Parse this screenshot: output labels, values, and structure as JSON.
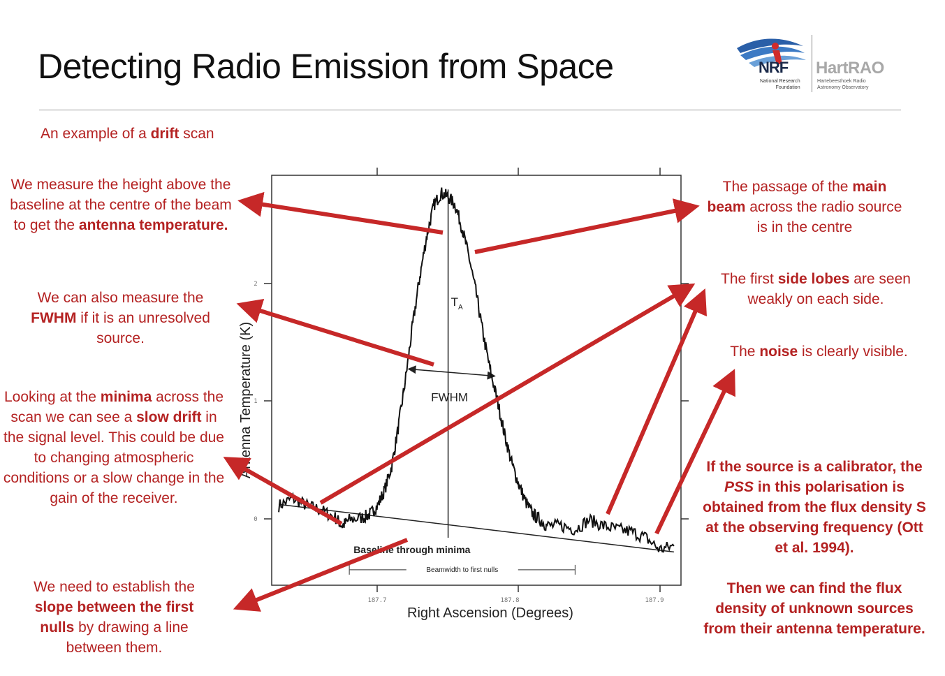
{
  "title": "Detecting Radio Emission from Space",
  "logo": {
    "nrf": "NRF",
    "nrf_sub_1": "National Research",
    "nrf_sub_2": "Foundation",
    "hart": "HartRAO",
    "hart_sub_1": "Hartebeesthoek Radio",
    "hart_sub_2": "Astronomy Observatory"
  },
  "subtitle": {
    "pre": "An example of a ",
    "bold": "drift",
    "post": " scan"
  },
  "annotations": {
    "antenna_temp": {
      "pre": "We measure the height above the baseline at the centre of the beam to get the ",
      "bold": "antenna temperature."
    },
    "fwhm": {
      "pre": "We can also measure the ",
      "bold": "FWHM",
      "post": " if it is an unresolved source."
    },
    "minima": {
      "pre": "Looking at the ",
      "bold1": "minima",
      "mid": " across the scan we can see a ",
      "bold2": "slow drift",
      "post": " in the signal level. This could be due to changing atmospheric conditions or a slow change in the gain of the receiver."
    },
    "slope": {
      "pre": "We need to establish the ",
      "bold": "slope between the first nulls",
      "post": " by drawing a line between them."
    },
    "main_beam": {
      "pre": "The passage of the ",
      "bold": "main beam",
      "post": " across the radio source is in the centre"
    },
    "side_lobes": {
      "pre": "The first ",
      "bold": "side lobes",
      "post": " are seen weakly on each side."
    },
    "noise": {
      "pre": "The ",
      "bold": "noise",
      "post": " is clearly visible."
    },
    "calibrator": {
      "pre": "If the source is a calibrator, the ",
      "italic": "PSS",
      "post": " in this polarisation is obtained from the flux density S at the observing frequency (Ott et al. 1994)."
    },
    "flux": {
      "text": "Then we can find the flux density of unknown sources from their antenna temperature."
    }
  },
  "colors": {
    "accent": "#b42222",
    "arrow": "#c62828",
    "trace": "#111111"
  },
  "chart_data": {
    "type": "line",
    "xlabel": "Right Ascension (Degrees)",
    "ylabel": "Antenna Temperature (K)",
    "x_ticks": [
      "187.7",
      "187.8",
      "187.9"
    ],
    "y_ticks": [
      "0",
      "1",
      "2"
    ],
    "xlim": [
      187.625,
      187.915
    ],
    "ylim": [
      -0.55,
      2.9
    ],
    "labels": {
      "ta": "T",
      "ta_sub": "A",
      "fwhm": "FWHM",
      "baseline": "Baseline through minima",
      "beamwidth": "Beamwidth to first nulls"
    },
    "beam_center": 187.75,
    "baseline": [
      [
        187.63,
        0.13
      ],
      [
        187.91,
        -0.27
      ]
    ],
    "fwhm_range": [
      187.72,
      187.785,
      1.24
    ],
    "beamwidth_range": [
      187.68,
      187.84,
      -0.42
    ],
    "series": [
      {
        "x": [
          187.63,
          187.64,
          187.65,
          187.66,
          187.67,
          187.675,
          187.68,
          187.69,
          187.695,
          187.7,
          187.705,
          187.71,
          187.715,
          187.72,
          187.725,
          187.73,
          187.735,
          187.74,
          187.745,
          187.75,
          187.755,
          187.76,
          187.765,
          187.77,
          187.775,
          187.78,
          187.785,
          187.79,
          187.795,
          187.8,
          187.805,
          187.81,
          187.815,
          187.82,
          187.83,
          187.84,
          187.85,
          187.86,
          187.87,
          187.88,
          187.89,
          187.9,
          187.91
        ],
        "y": [
          0.12,
          0.18,
          0.12,
          0.08,
          0.02,
          -0.05,
          0.0,
          0.02,
          0.05,
          0.12,
          0.25,
          0.45,
          0.8,
          1.2,
          1.65,
          2.05,
          2.4,
          2.65,
          2.75,
          2.72,
          2.65,
          2.45,
          2.2,
          1.9,
          1.55,
          1.25,
          1.0,
          0.72,
          0.48,
          0.3,
          0.15,
          0.05,
          0.0,
          -0.05,
          -0.05,
          -0.08,
          0.0,
          -0.05,
          -0.08,
          -0.1,
          -0.15,
          -0.25,
          -0.22
        ]
      }
    ]
  }
}
